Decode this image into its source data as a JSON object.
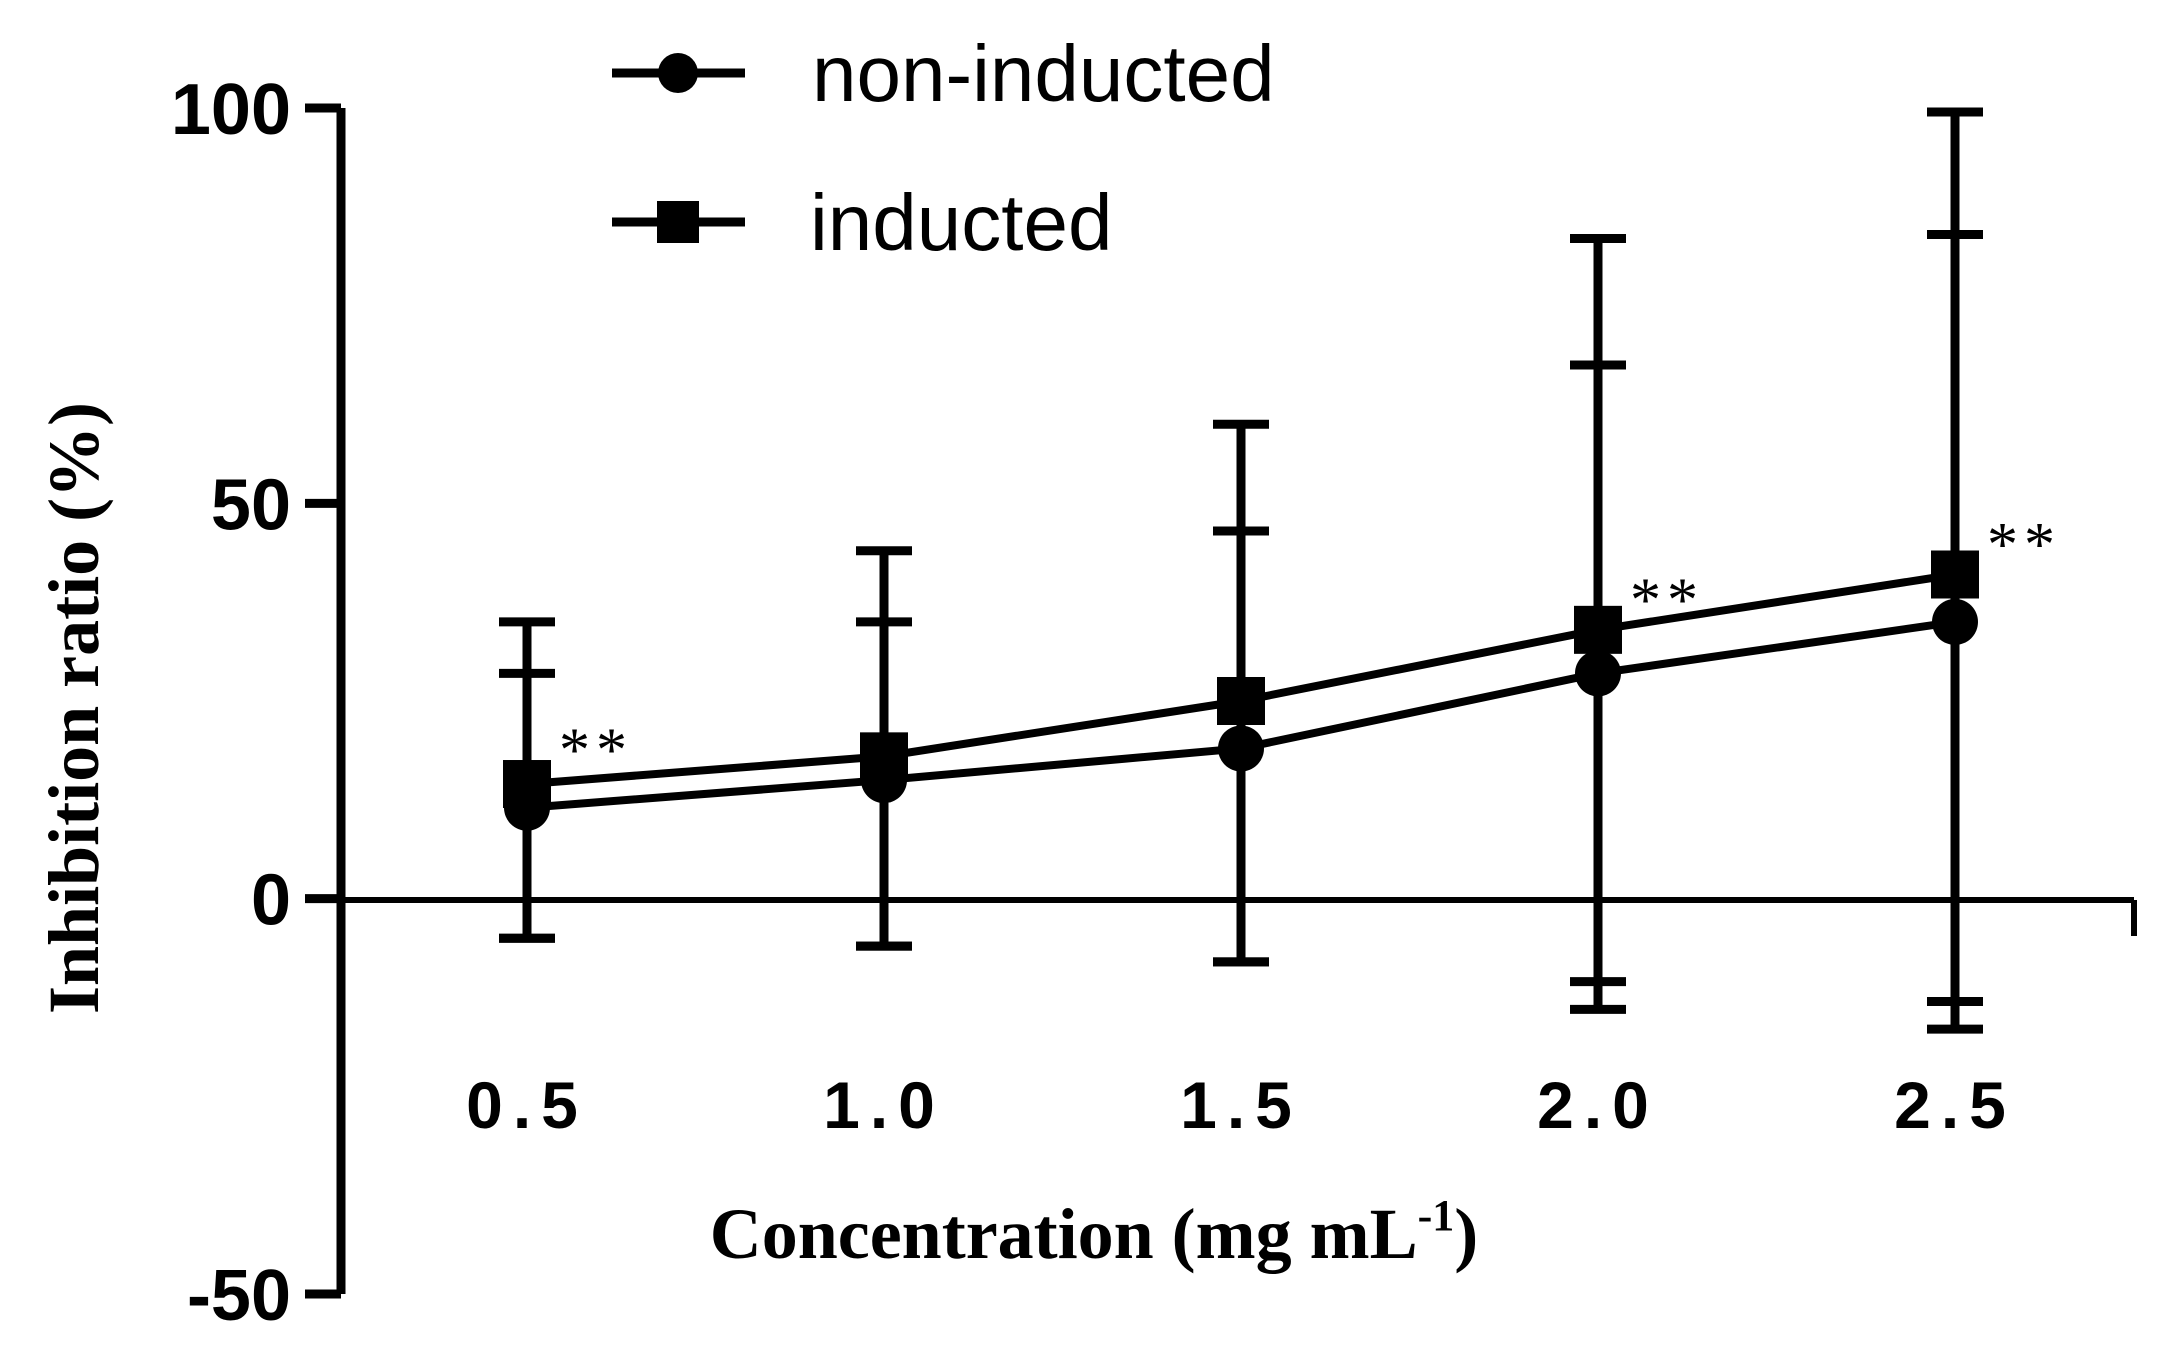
{
  "chart_data": {
    "type": "line",
    "xlabel": "Concentration (mg mL",
    "xlabel_superscript": "-1",
    "xlabel_suffix": ")",
    "ylabel": "Inhibition ratio (%)",
    "ylim": [
      -50,
      100
    ],
    "yticks": [
      -50,
      0,
      50,
      100
    ],
    "x": [
      0.5,
      1.0,
      1.5,
      2.0,
      2.5
    ],
    "x_tick_labels": [
      "0.5",
      "1.0",
      "1.5",
      "2.0",
      "2.5"
    ],
    "legend_position": "top-left",
    "series": [
      {
        "name": "non-inducted",
        "marker": "circle",
        "values": [
          11.5,
          15,
          19,
          28.5,
          35
        ],
        "err_upper": [
          28.5,
          35,
          46.5,
          67.5,
          84
        ],
        "err_lower": [
          -5,
          -6,
          -8,
          -10.5,
          -13
        ]
      },
      {
        "name": "inducted",
        "marker": "square",
        "values": [
          14.5,
          18,
          25,
          34,
          41
        ],
        "err_upper": [
          35,
          44,
          60,
          83.5,
          99.5
        ],
        "err_lower": [
          -5,
          -6,
          -8,
          -14,
          -16.5
        ]
      }
    ],
    "annotations": [
      {
        "x": 0.5,
        "text": "**",
        "y": 20
      },
      {
        "x": 2.0,
        "text": "**",
        "y": 39
      },
      {
        "x": 2.5,
        "text": "**",
        "y": 46
      }
    ]
  },
  "colors": {
    "line": "#000000",
    "background": "#ffffff"
  }
}
